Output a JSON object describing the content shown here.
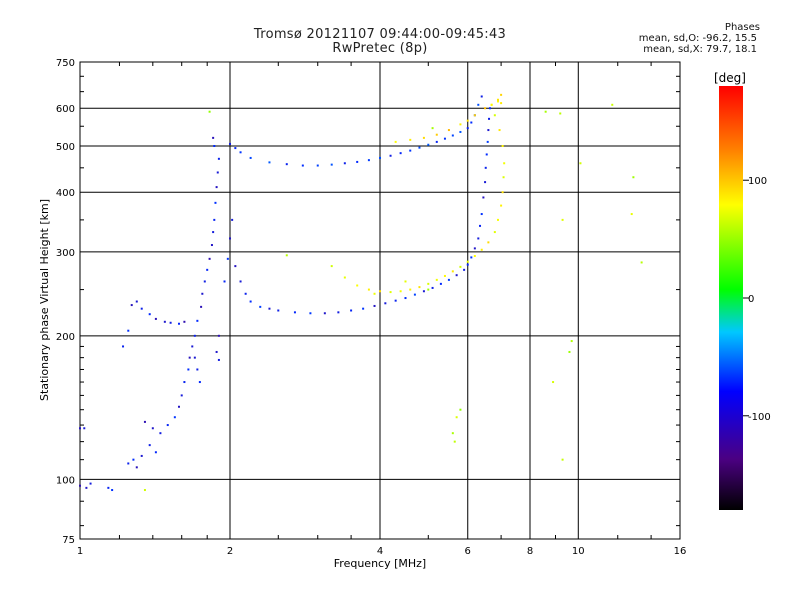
{
  "title_line1": "Tromsø 20121107 09:44:00-09:45:43",
  "title_line2": "RwPretec (8p)",
  "stats": {
    "title": "Phases",
    "line_o": "mean, sd,O: -96.2, 15.5",
    "line_x": "mean, sd,X: 79.7, 18.1"
  },
  "colorbar": {
    "label": "[deg]",
    "ticks": [
      "100",
      "0",
      "-100"
    ],
    "tick_values": [
      100,
      0,
      -100
    ],
    "range": [
      -180,
      180
    ]
  },
  "chart_data": {
    "type": "scatter",
    "x_scale": "log",
    "y_scale": "log",
    "xlabel": "Frequency [MHz]",
    "ylabel": "Stationary phase Virtual Height [km]",
    "xlim": [
      1,
      16
    ],
    "ylim": [
      75,
      750
    ],
    "x_ticks": [
      1,
      2,
      4,
      6,
      8,
      10,
      16
    ],
    "x_tick_labels": [
      "1",
      "2",
      "4",
      "6",
      "8",
      "10",
      "16"
    ],
    "y_ticks": [
      75,
      100,
      200,
      300,
      400,
      500,
      600,
      750
    ],
    "y_tick_labels": [
      "75",
      "100",
      "200",
      "300",
      "400",
      "500",
      "600",
      "750"
    ],
    "grid": true,
    "series": [
      {
        "points": [
          [
            1.0,
            97
          ],
          [
            1.03,
            96
          ],
          [
            1.05,
            98
          ],
          [
            1.14,
            96
          ],
          [
            1.16,
            95
          ],
          [
            1.0,
            128
          ],
          [
            1.02,
            128
          ],
          [
            1.25,
            108
          ],
          [
            1.28,
            110
          ],
          [
            1.3,
            106
          ],
          [
            1.33,
            112
          ],
          [
            1.38,
            118
          ],
          [
            1.42,
            114
          ],
          [
            1.35,
            132
          ],
          [
            1.4,
            128
          ],
          [
            1.45,
            125
          ],
          [
            1.5,
            130
          ],
          [
            1.55,
            135
          ],
          [
            1.58,
            142
          ],
          [
            1.6,
            150
          ],
          [
            1.62,
            160
          ],
          [
            1.65,
            170
          ],
          [
            1.66,
            180
          ],
          [
            1.68,
            190
          ],
          [
            1.7,
            200
          ],
          [
            1.72,
            215
          ],
          [
            1.75,
            230
          ],
          [
            1.76,
            245
          ],
          [
            1.78,
            260
          ],
          [
            1.8,
            275
          ],
          [
            1.82,
            290
          ],
          [
            1.84,
            310
          ],
          [
            1.85,
            330
          ],
          [
            1.86,
            350
          ],
          [
            1.87,
            380
          ],
          [
            1.88,
            410
          ],
          [
            1.89,
            440
          ],
          [
            1.9,
            470
          ],
          [
            1.86,
            500
          ],
          [
            1.85,
            520
          ],
          [
            1.7,
            180
          ],
          [
            1.72,
            170
          ],
          [
            1.74,
            160
          ],
          [
            1.9,
            200
          ],
          [
            1.88,
            185
          ],
          [
            1.9,
            178
          ],
          [
            1.95,
            260
          ],
          [
            1.98,
            290
          ],
          [
            2.0,
            320
          ],
          [
            2.02,
            350
          ],
          [
            1.22,
            190
          ],
          [
            1.25,
            205
          ],
          [
            1.27,
            232
          ],
          [
            1.3,
            236
          ],
          [
            1.33,
            228
          ],
          [
            1.38,
            222
          ],
          [
            1.42,
            217
          ],
          [
            1.48,
            214
          ],
          [
            1.52,
            213
          ],
          [
            1.58,
            212
          ],
          [
            1.62,
            214
          ]
        ],
        "mode": "O-trace scattered",
        "phase": -110
      },
      {
        "points": [
          [
            2.05,
            280
          ],
          [
            2.1,
            260
          ],
          [
            2.15,
            245
          ],
          [
            2.2,
            236
          ],
          [
            2.3,
            230
          ],
          [
            2.4,
            228
          ],
          [
            2.5,
            226
          ],
          [
            2.7,
            224
          ],
          [
            2.9,
            223
          ],
          [
            3.1,
            223
          ],
          [
            3.3,
            224
          ],
          [
            3.5,
            226
          ],
          [
            3.7,
            228
          ],
          [
            3.9,
            231
          ],
          [
            4.1,
            234
          ],
          [
            4.3,
            237
          ],
          [
            4.5,
            240
          ],
          [
            4.7,
            244
          ],
          [
            4.9,
            248
          ],
          [
            5.1,
            252
          ],
          [
            5.3,
            257
          ],
          [
            5.5,
            262
          ],
          [
            5.7,
            268
          ],
          [
            5.9,
            275
          ],
          [
            6.0,
            282
          ],
          [
            6.1,
            292
          ],
          [
            6.2,
            305
          ],
          [
            6.3,
            320
          ],
          [
            6.35,
            340
          ],
          [
            6.4,
            360
          ],
          [
            6.45,
            390
          ],
          [
            6.5,
            420
          ],
          [
            6.52,
            450
          ],
          [
            6.55,
            480
          ],
          [
            6.58,
            510
          ],
          [
            6.6,
            540
          ],
          [
            6.62,
            570
          ],
          [
            6.65,
            600
          ]
        ],
        "mode": "O-trace F2",
        "phase": -105
      },
      {
        "points": [
          [
            2.0,
            505
          ],
          [
            2.05,
            495
          ],
          [
            2.1,
            485
          ],
          [
            2.2,
            472
          ],
          [
            2.4,
            462
          ],
          [
            2.6,
            458
          ],
          [
            2.8,
            455
          ],
          [
            3.0,
            455
          ],
          [
            3.2,
            457
          ],
          [
            3.4,
            460
          ],
          [
            3.6,
            463
          ],
          [
            3.8,
            467
          ],
          [
            4.0,
            472
          ],
          [
            4.2,
            477
          ],
          [
            4.4,
            483
          ],
          [
            4.6,
            489
          ],
          [
            4.8,
            496
          ],
          [
            5.0,
            503
          ],
          [
            5.2,
            510
          ],
          [
            5.4,
            518
          ],
          [
            5.6,
            526
          ],
          [
            5.8,
            535
          ],
          [
            6.0,
            545
          ],
          [
            6.1,
            560
          ],
          [
            6.2,
            580
          ],
          [
            6.3,
            610
          ],
          [
            6.4,
            635
          ]
        ],
        "mode": "O-trace multiple",
        "phase": -95
      },
      {
        "points": [
          [
            3.2,
            280
          ],
          [
            3.4,
            265
          ],
          [
            3.6,
            255
          ],
          [
            3.8,
            250
          ],
          [
            4.0,
            248
          ],
          [
            4.2,
            247
          ],
          [
            4.4,
            248
          ],
          [
            4.6,
            250
          ],
          [
            4.8,
            253
          ],
          [
            5.0,
            257
          ],
          [
            5.2,
            262
          ],
          [
            5.4,
            267
          ],
          [
            5.6,
            273
          ],
          [
            5.8,
            279
          ],
          [
            6.0,
            286
          ],
          [
            6.2,
            294
          ],
          [
            6.4,
            303
          ],
          [
            6.6,
            314
          ],
          [
            6.8,
            330
          ],
          [
            6.9,
            350
          ],
          [
            7.0,
            375
          ],
          [
            7.05,
            400
          ],
          [
            7.08,
            430
          ],
          [
            7.1,
            460
          ],
          [
            7.05,
            500
          ],
          [
            6.95,
            540
          ],
          [
            6.8,
            580
          ],
          [
            6.7,
            610
          ],
          [
            6.9,
            620
          ],
          [
            7.0,
            615
          ]
        ],
        "mode": "X-trace",
        "phase": 80
      },
      {
        "points": [
          [
            4.3,
            510
          ],
          [
            4.6,
            515
          ],
          [
            4.9,
            520
          ],
          [
            5.2,
            528
          ],
          [
            5.5,
            540
          ],
          [
            5.8,
            555
          ],
          [
            6.0,
            565
          ],
          [
            6.2,
            580
          ],
          [
            6.5,
            600
          ],
          [
            6.7,
            610
          ],
          [
            6.9,
            625
          ],
          [
            7.0,
            640
          ]
        ],
        "mode": "X-trace multiple",
        "phase": 95
      },
      {
        "points": [
          [
            1.82,
            590
          ],
          [
            8.6,
            590
          ],
          [
            9.2,
            585
          ],
          [
            10.1,
            460
          ],
          [
            12.8,
            360
          ],
          [
            12.9,
            430
          ],
          [
            13.4,
            285
          ],
          [
            11.7,
            610
          ],
          [
            9.3,
            350
          ],
          [
            9.6,
            185
          ],
          [
            9.7,
            195
          ],
          [
            9.3,
            110
          ],
          [
            5.7,
            135
          ],
          [
            5.8,
            140
          ],
          [
            5.6,
            125
          ],
          [
            5.65,
            120
          ],
          [
            8.9,
            160
          ],
          [
            3.9,
            245
          ],
          [
            5.1,
            545
          ],
          [
            2.6,
            295
          ],
          [
            1.35,
            95
          ],
          [
            4.5,
            260
          ],
          [
            5.0,
            250
          ]
        ],
        "mode": "scattered noise",
        "phase": 60
      }
    ]
  }
}
